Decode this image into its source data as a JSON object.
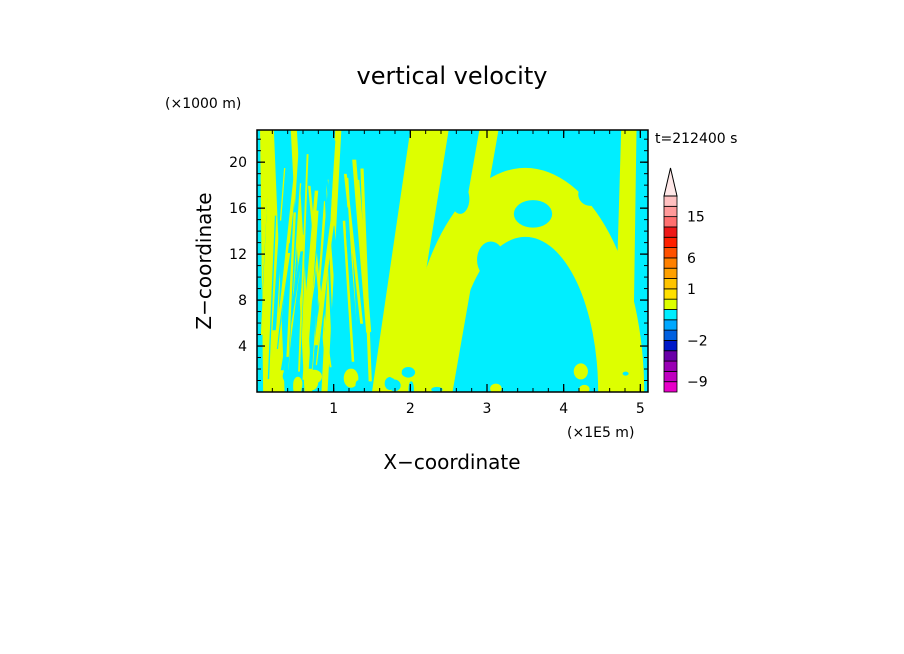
{
  "chart_data": {
    "type": "heatmap",
    "title": "vertical velocity",
    "xlabel": "X−coordinate",
    "ylabel": "Z−coordinate",
    "x_unit": "(×1E5 m)",
    "y_unit": "(×1000 m)",
    "time_stamp": "t=212400 s",
    "xlim": [
      0,
      5.1
    ],
    "ylim": [
      0,
      22.8
    ],
    "x_ticks": [
      "1",
      "2",
      "3",
      "4",
      "5"
    ],
    "x_tick_values": [
      1,
      2,
      3,
      4,
      5
    ],
    "y_ticks": [
      "4",
      "8",
      "12",
      "16",
      "20"
    ],
    "y_tick_values": [
      4,
      8,
      12,
      16,
      20
    ],
    "field_colors": {
      "negative": "#00eeff",
      "positive": "#ddff00"
    },
    "plumes": [
      {
        "x0": 0.08,
        "x1": 0.36,
        "x0_top": 0.04,
        "x1_top": 0.22
      },
      {
        "x0": 0.62,
        "x1": 0.72,
        "x0_top": 0.44,
        "x1_top": 0.52
      },
      {
        "x0": 0.84,
        "x1": 0.92,
        "x0_top": 1.02,
        "x1_top": 1.1
      },
      {
        "x0": 1.5,
        "x1": 1.95,
        "x0_top": 2.0,
        "x1_top": 2.5
      },
      {
        "x0": 2.3,
        "x1": 2.55,
        "x0_top": 2.9,
        "x1_top": 3.15
      },
      {
        "x0": 4.65,
        "x1": 4.9,
        "x0_top": 4.75,
        "x1_top": 4.95
      }
    ],
    "arch": {
      "center_x": 3.5,
      "inner_radius_x": 0.95,
      "outer_radius_x": 1.55,
      "inner_radius_z": 13.5,
      "outer_radius_z": 19.5
    },
    "colorbar": {
      "labels": [
        "15",
        "6",
        "1",
        "−2",
        "−9"
      ],
      "label_values": [
        15,
        6,
        1,
        -2,
        -9
      ],
      "bins": [
        {
          "lo": -11,
          "hi": -9,
          "color": "#e800c8"
        },
        {
          "lo": -9,
          "hi": -7,
          "color": "#c000c0"
        },
        {
          "lo": -7,
          "hi": -5,
          "color": "#9a00b4"
        },
        {
          "lo": -5,
          "hi": -3,
          "color": "#6a00a8"
        },
        {
          "lo": -3,
          "hi": -2,
          "color": "#0018c8"
        },
        {
          "lo": -2,
          "hi": -1,
          "color": "#0060e0"
        },
        {
          "lo": -1,
          "hi": -0.5,
          "color": "#00a8ff"
        },
        {
          "lo": -0.5,
          "hi": 0,
          "color": "#00eeff"
        },
        {
          "lo": 0,
          "hi": 0.5,
          "color": "#ddff00"
        },
        {
          "lo": 0.5,
          "hi": 1,
          "color": "#ffe000"
        },
        {
          "lo": 1,
          "hi": 2,
          "color": "#ffc400"
        },
        {
          "lo": 2,
          "hi": 4,
          "color": "#ffa000"
        },
        {
          "lo": 4,
          "hi": 6,
          "color": "#ff8000"
        },
        {
          "lo": 6,
          "hi": 8,
          "color": "#ff5000"
        },
        {
          "lo": 8,
          "hi": 10,
          "color": "#ff2000"
        },
        {
          "lo": 10,
          "hi": 12,
          "color": "#ee1818"
        },
        {
          "lo": 12,
          "hi": 15,
          "color": "#ff7070"
        },
        {
          "lo": 15,
          "hi": 18,
          "color": "#ff9a9a"
        },
        {
          "lo": 18,
          "hi": 22,
          "color": "#ffc0c0"
        }
      ],
      "extend_color": "#ffe8e8"
    }
  }
}
